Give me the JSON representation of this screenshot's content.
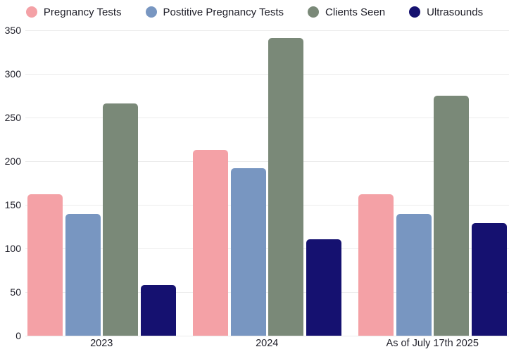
{
  "chart_data": {
    "type": "bar",
    "categories": [
      "2023",
      "2024",
      "As of July 17th 2025"
    ],
    "series": [
      {
        "name": "Pregnancy Tests",
        "color": "#f4a1a6",
        "values": [
          162,
          213,
          162
        ]
      },
      {
        "name": "Postitive Pregnancy Tests",
        "color": "#7896c1",
        "values": [
          140,
          192,
          140
        ]
      },
      {
        "name": "Clients Seen",
        "color": "#7a8978",
        "values": [
          266,
          341,
          275
        ]
      },
      {
        "name": "Ultrasounds",
        "color": "#151170",
        "values": [
          58,
          111,
          129
        ]
      }
    ],
    "title": "",
    "xlabel": "",
    "ylabel": "",
    "ylim": [
      0,
      350
    ],
    "yticks": [
      0,
      50,
      100,
      150,
      200,
      250,
      300,
      350
    ],
    "grid": true,
    "legend_position": "top"
  },
  "colors": {
    "background": "#ffffff",
    "gridline": "#ececec",
    "axis_text": "#21212b",
    "label_text": "#1e1e28"
  }
}
